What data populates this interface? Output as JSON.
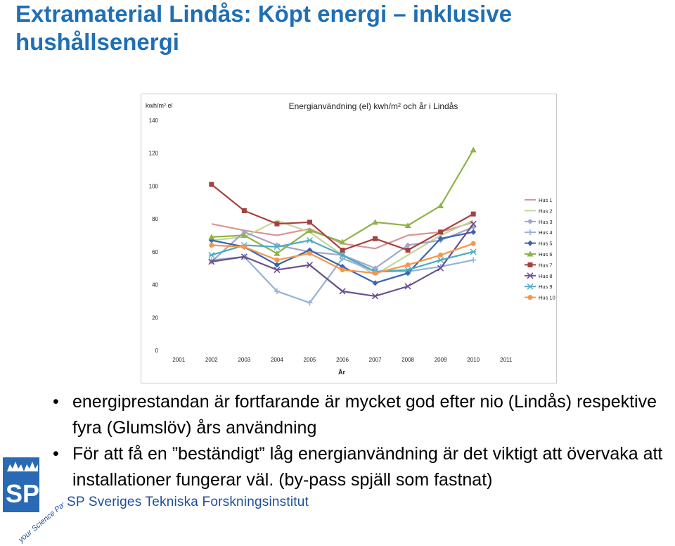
{
  "slide": {
    "title": "Extramaterial Lindås: Köpt energi – inklusive hushållsenergi",
    "bullets": [
      "energiprestandan är fortfarande är mycket god efter nio (Lindås) respektive fyra (Glumslöv) års användning",
      "För att få en ”beständigt” låg energianvändning är det viktigt att övervaka att installationer fungerar väl. (by-pass spjäll som fastnat)"
    ],
    "bullet_symbol": "•"
  },
  "footer": {
    "org_name": "SP Sveriges Tekniska Forskningsinstitut",
    "logo_text": "SP",
    "badge_text": "your Science Partner"
  },
  "colors": {
    "title": "#1f6fb6",
    "org": "#1f4e9a",
    "logo_blue": "#2a6ab4"
  },
  "chart_data": {
    "type": "line",
    "title": "Energianvändning (el) kwh/m² och år i Lindås",
    "ylabel": "kwh/m² el",
    "xlabel": "År",
    "x": [
      "2001",
      "2002",
      "2003",
      "2004",
      "2005",
      "2006",
      "2007",
      "2008",
      "2009",
      "2010",
      "2011"
    ],
    "ylim": [
      0,
      140
    ],
    "yticks": [
      0,
      20,
      40,
      60,
      80,
      100,
      120,
      140
    ],
    "legend_position": "right",
    "grid": false,
    "series": [
      {
        "name": "Hus 1",
        "color": "#d99694",
        "marker": "none",
        "values": [
          null,
          77,
          73,
          70,
          74,
          65,
          62,
          70,
          72,
          78,
          null
        ]
      },
      {
        "name": "Hus 2",
        "color": "#c3d69b",
        "marker": "none",
        "values": [
          null,
          67,
          69,
          79,
          72,
          58,
          46,
          58,
          70,
          79,
          null
        ]
      },
      {
        "name": "Hus 3",
        "color": "#a3a6c9",
        "marker": "diamond",
        "values": [
          null,
          54,
          72,
          64,
          60,
          58,
          50,
          64,
          67,
          75,
          null
        ]
      },
      {
        "name": "Hus 4",
        "color": "#95b3d7",
        "marker": "plus",
        "values": [
          null,
          55,
          57,
          36,
          29,
          56,
          48,
          48,
          51,
          55,
          null
        ]
      },
      {
        "name": "Hus 5",
        "color": "#3b64ad",
        "marker": "diamond",
        "values": [
          null,
          67,
          63,
          52,
          61,
          51,
          41,
          47,
          68,
          72,
          null
        ]
      },
      {
        "name": "Hus 6",
        "color": "#8fb347",
        "marker": "triangle",
        "values": [
          null,
          69,
          70,
          59,
          73,
          66,
          78,
          76,
          88,
          122,
          null
        ]
      },
      {
        "name": "Hus 7",
        "color": "#a5413e",
        "marker": "square",
        "values": [
          null,
          101,
          85,
          77,
          78,
          61,
          68,
          61,
          72,
          83,
          null
        ]
      },
      {
        "name": "Hus 8",
        "color": "#6b4f8e",
        "marker": "x",
        "values": [
          null,
          54,
          57,
          49,
          52,
          36,
          33,
          39,
          50,
          77,
          null
        ]
      },
      {
        "name": "Hus 9",
        "color": "#4aacc6",
        "marker": "star",
        "values": [
          null,
          58,
          64,
          63,
          67,
          58,
          48,
          49,
          55,
          60,
          null
        ]
      },
      {
        "name": "Hus 10",
        "color": "#f79646",
        "marker": "circle",
        "values": [
          null,
          64,
          63,
          55,
          59,
          49,
          47,
          52,
          58,
          65,
          null
        ]
      }
    ]
  }
}
